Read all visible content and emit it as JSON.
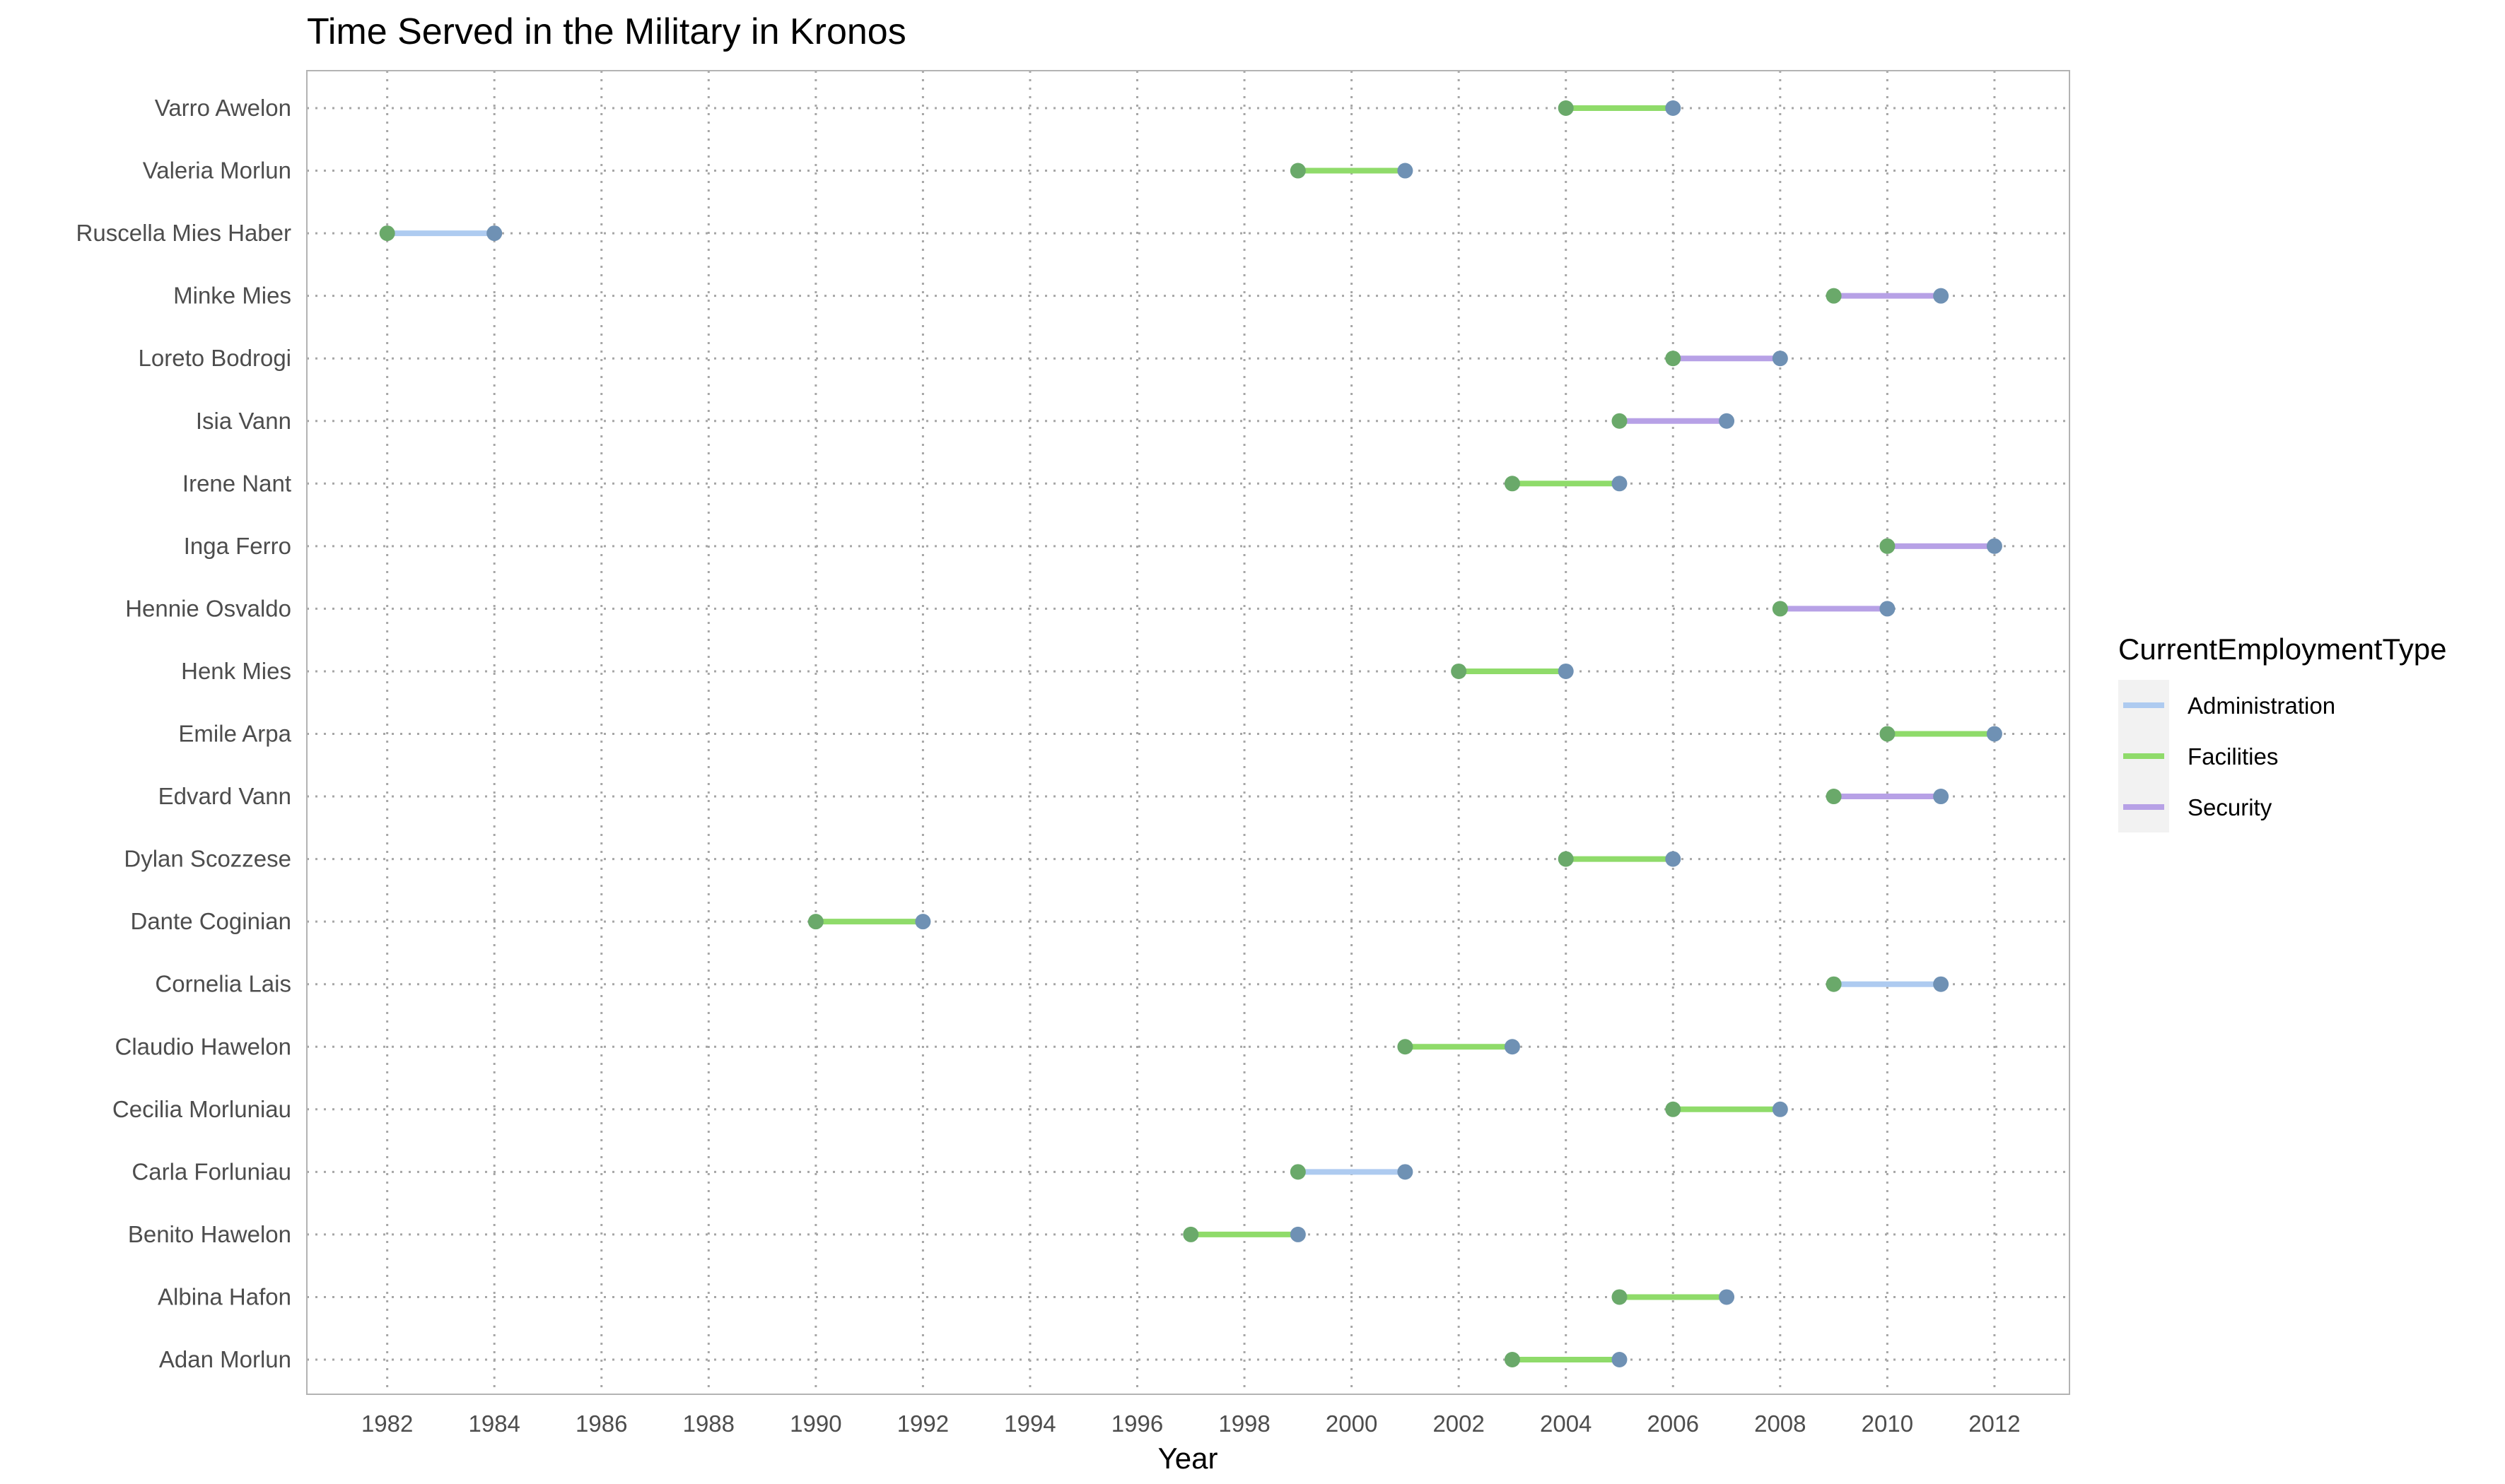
{
  "chart_data": {
    "type": "dumbbell",
    "title": "Time Served in the Military in Kronos",
    "xlabel": "Year",
    "ylabel": "",
    "xlim": [
      1980.5,
      2013.4
    ],
    "x_ticks": [
      1982,
      1984,
      1986,
      1988,
      1990,
      1992,
      1994,
      1996,
      1998,
      2000,
      2002,
      2004,
      2006,
      2008,
      2010,
      2012
    ],
    "grid": "dotted",
    "legend": {
      "title": "CurrentEmploymentType",
      "position": "right",
      "entries": [
        {
          "label": "Administration",
          "color": "#aecbf0"
        },
        {
          "label": "Facilities",
          "color": "#8fdb6a"
        },
        {
          "label": "Security",
          "color": "#b7a1e6"
        }
      ]
    },
    "start_point_color": "#6aa96a",
    "end_point_color": "#6f91b4",
    "rows": [
      {
        "name": "Varro Awelon",
        "start": 2004,
        "end": 2006,
        "type": "Facilities"
      },
      {
        "name": "Valeria Morlun",
        "start": 1999,
        "end": 2001,
        "type": "Facilities"
      },
      {
        "name": "Ruscella Mies Haber",
        "start": 1982,
        "end": 1984,
        "type": "Administration"
      },
      {
        "name": "Minke Mies",
        "start": 2009,
        "end": 2011,
        "type": "Security"
      },
      {
        "name": "Loreto Bodrogi",
        "start": 2006,
        "end": 2008,
        "type": "Security"
      },
      {
        "name": "Isia Vann",
        "start": 2005,
        "end": 2007,
        "type": "Security"
      },
      {
        "name": "Irene Nant",
        "start": 2003,
        "end": 2005,
        "type": "Facilities"
      },
      {
        "name": "Inga Ferro",
        "start": 2010,
        "end": 2012,
        "type": "Security"
      },
      {
        "name": "Hennie Osvaldo",
        "start": 2008,
        "end": 2010,
        "type": "Security"
      },
      {
        "name": "Henk Mies",
        "start": 2002,
        "end": 2004,
        "type": "Facilities"
      },
      {
        "name": "Emile Arpa",
        "start": 2010,
        "end": 2012,
        "type": "Facilities"
      },
      {
        "name": "Edvard Vann",
        "start": 2009,
        "end": 2011,
        "type": "Security"
      },
      {
        "name": "Dylan Scozzese",
        "start": 2004,
        "end": 2006,
        "type": "Facilities"
      },
      {
        "name": "Dante Coginian",
        "start": 1990,
        "end": 1992,
        "type": "Facilities"
      },
      {
        "name": "Cornelia Lais",
        "start": 2009,
        "end": 2011,
        "type": "Administration"
      },
      {
        "name": "Claudio Hawelon",
        "start": 2001,
        "end": 2003,
        "type": "Facilities"
      },
      {
        "name": "Cecilia Morluniau",
        "start": 2006,
        "end": 2008,
        "type": "Facilities"
      },
      {
        "name": "Carla Forluniau",
        "start": 1999,
        "end": 2001,
        "type": "Administration"
      },
      {
        "name": "Benito Hawelon",
        "start": 1997,
        "end": 1999,
        "type": "Facilities"
      },
      {
        "name": "Albina Hafon",
        "start": 2005,
        "end": 2007,
        "type": "Facilities"
      },
      {
        "name": "Adan Morlun",
        "start": 2003,
        "end": 2005,
        "type": "Facilities"
      }
    ]
  }
}
